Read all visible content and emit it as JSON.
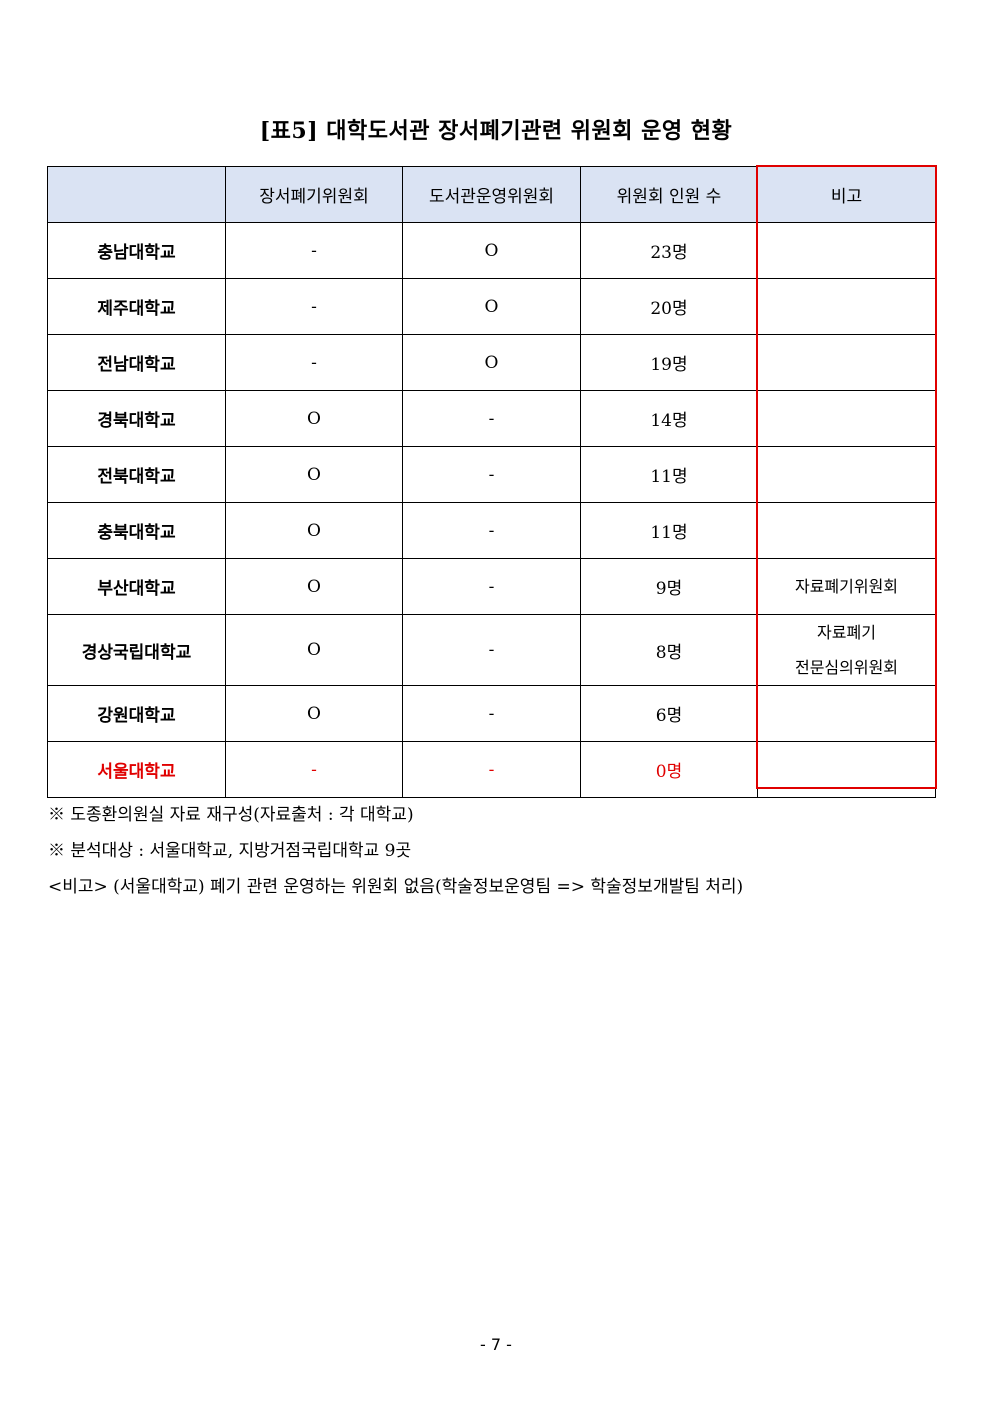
{
  "title": "[표5] 대학도서관 장서폐기관련 위원회 운영 현황",
  "table": {
    "headers": [
      "",
      "장서폐기위원회",
      "도서관운영위원회",
      "위원회 인원 수",
      "비고"
    ],
    "rows": [
      {
        "name": "충남대학교",
        "c1": "-",
        "c2": "O",
        "count": "23명",
        "remark": ""
      },
      {
        "name": "제주대학교",
        "c1": "-",
        "c2": "O",
        "count": "20명",
        "remark": ""
      },
      {
        "name": "전남대학교",
        "c1": "-",
        "c2": "O",
        "count": "19명",
        "remark": ""
      },
      {
        "name": "경북대학교",
        "c1": "O",
        "c2": "-",
        "count": "14명",
        "remark": ""
      },
      {
        "name": "전북대학교",
        "c1": "O",
        "c2": "-",
        "count": "11명",
        "remark": ""
      },
      {
        "name": "충북대학교",
        "c1": "O",
        "c2": "-",
        "count": "11명",
        "remark": ""
      },
      {
        "name": "부산대학교",
        "c1": "O",
        "c2": "-",
        "count": "9명",
        "remark": "자료폐기위원회"
      },
      {
        "name": "경상국립대학교",
        "c1": "O",
        "c2": "-",
        "count": "8명",
        "remark": "자료폐기",
        "remark2": "전문심의위원회"
      },
      {
        "name": "강원대학교",
        "c1": "O",
        "c2": "-",
        "count": "6명",
        "remark": ""
      },
      {
        "name": "서울대학교",
        "c1": "-",
        "c2": "-",
        "count": "0명",
        "remark": ""
      }
    ],
    "highlight_color": "#e00000",
    "header_bg": "#dae3f3"
  },
  "notes": [
    "※ 도종환의원실 자료 재구성(자료출처 : 각 대학교)",
    "※ 분석대상 : 서울대학교, 지방거점국립대학교 9곳",
    "<비고> (서울대학교) 폐기 관련 운영하는 위원회 없음(학술정보운영팀 => 학술정보개발팀 처리)"
  ],
  "page_number": "- 7 -"
}
